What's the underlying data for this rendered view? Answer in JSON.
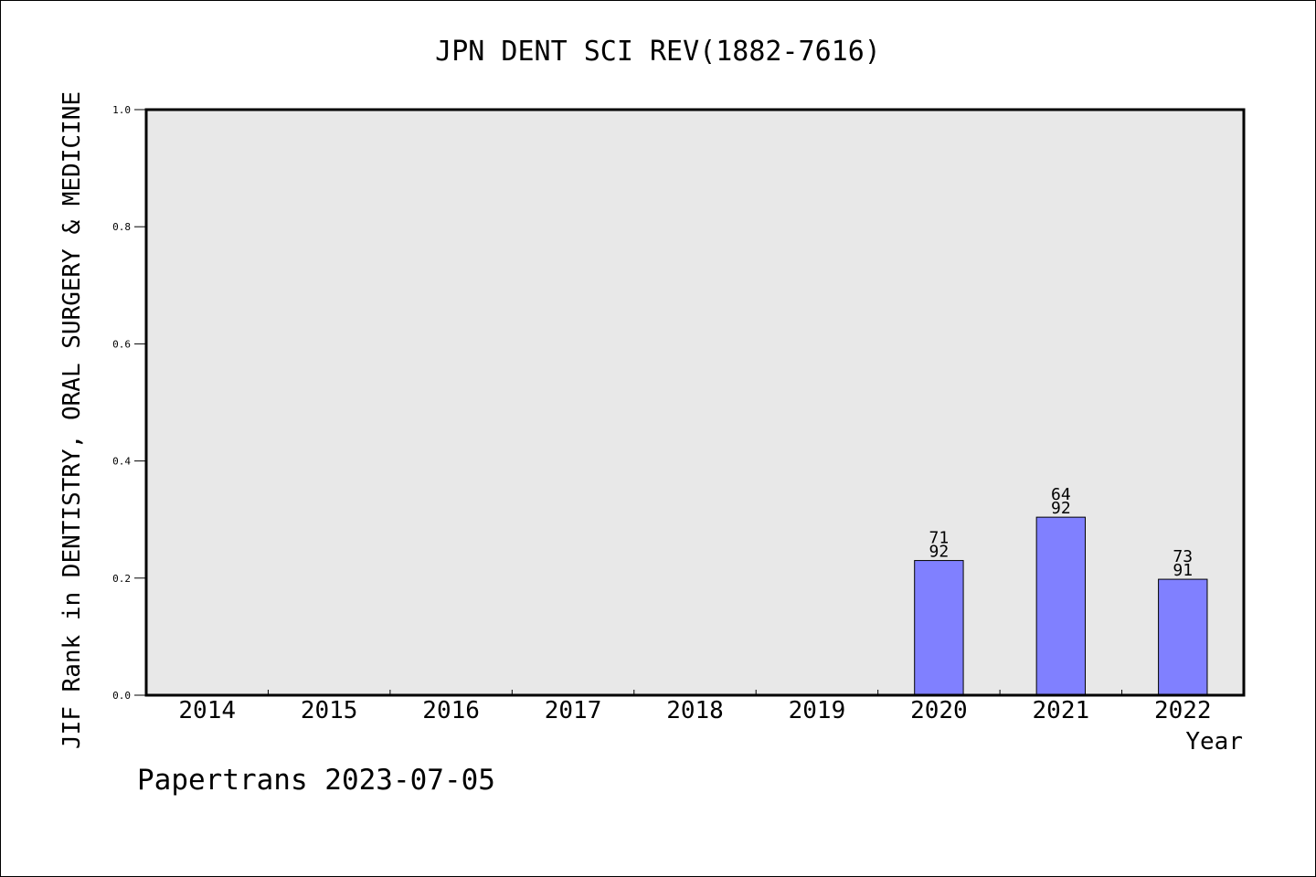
{
  "chart_data": {
    "type": "bar",
    "title": "JPN DENT SCI REV(1882-7616)",
    "xlabel": "Year",
    "ylabel": "JIF Rank in DENTISTRY, ORAL SURGERY & MEDICINE",
    "categories": [
      "2014",
      "2015",
      "2016",
      "2017",
      "2018",
      "2019",
      "2020",
      "2021",
      "2022"
    ],
    "values": [
      null,
      null,
      null,
      null,
      null,
      null,
      0.23,
      0.304,
      0.198
    ],
    "bar_labels": [
      null,
      null,
      null,
      null,
      null,
      null,
      {
        "rank": "71",
        "total": "92"
      },
      {
        "rank": "64",
        "total": "92"
      },
      {
        "rank": "73",
        "total": "91"
      }
    ],
    "ylim": [
      0,
      1.0
    ],
    "yticks": [
      0.0,
      0.2,
      0.4,
      0.6,
      0.8,
      1.0
    ],
    "ytick_labels": [
      "0.0",
      "0.2",
      "0.4",
      "0.6",
      "0.8",
      "1.0"
    ],
    "grid": false,
    "colors": {
      "plot_background": "#e8e8e8",
      "bar_fill": "#8080ff",
      "bar_stroke": "#000000",
      "frame": "#000000"
    }
  },
  "footer": {
    "source_label": "Papertrans 2023-07-05"
  }
}
